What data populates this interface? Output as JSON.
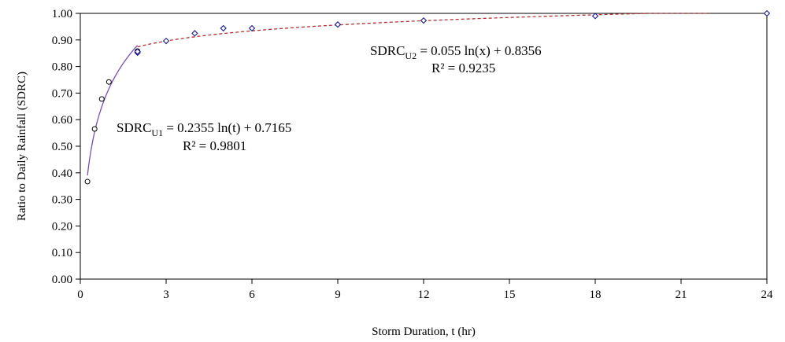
{
  "chart_data": {
    "type": "scatter",
    "xlabel": "Storm Duration, t (hr)",
    "ylabel": "Ratio to Daily Rainfall (SDRC)",
    "xlim": [
      0,
      24
    ],
    "ylim": [
      0,
      1.0
    ],
    "x_ticks": [
      0,
      3,
      6,
      9,
      12,
      15,
      18,
      21,
      24
    ],
    "y_ticks": [
      0.0,
      0.1,
      0.2,
      0.3,
      0.4,
      0.5,
      0.6,
      0.7,
      0.8,
      0.9,
      1.0
    ],
    "x_tick_labels": [
      "0",
      "3",
      "6",
      "9",
      "12",
      "15",
      "18",
      "21",
      "24"
    ],
    "y_tick_labels": [
      "0.00",
      "0.10",
      "0.20",
      "0.30",
      "0.40",
      "0.50",
      "0.60",
      "0.70",
      "0.80",
      "0.90",
      "1.00"
    ],
    "grid": false,
    "series": [
      {
        "marker": "circle",
        "color": "#000000",
        "x": [
          0.25,
          0.5,
          0.75,
          1.0,
          2.0
        ],
        "y": [
          0.367,
          0.565,
          0.678,
          0.742,
          0.858
        ]
      },
      {
        "marker": "diamond",
        "color": "#1a1a8c",
        "x": [
          2,
          2,
          3,
          4,
          5,
          6,
          9,
          12,
          18,
          24
        ],
        "y": [
          0.852,
          0.856,
          0.896,
          0.925,
          0.944,
          0.944,
          0.958,
          0.973,
          0.99,
          1.0
        ]
      }
    ],
    "trendlines": [
      {
        "style": "solid",
        "color": "#7a4fb8",
        "a": 0.2355,
        "b": 0.7165,
        "x_range": [
          0.25,
          2.0
        ],
        "equation_prefix": "SDRC",
        "equation_sub": "U1",
        "equation_rest": " = 0.2355 ln(t) + 0.7165",
        "r2": "R² = 0.9801"
      },
      {
        "style": "dashed",
        "color": "#b03030",
        "a": 0.055,
        "b": 0.8356,
        "x_range": [
          2.0,
          22.0
        ],
        "equation_prefix": "SDRC",
        "equation_sub": "U2",
        "equation_rest": " = 0.055 ln(x) + 0.8356",
        "r2": "R² = 0.9235"
      }
    ]
  }
}
